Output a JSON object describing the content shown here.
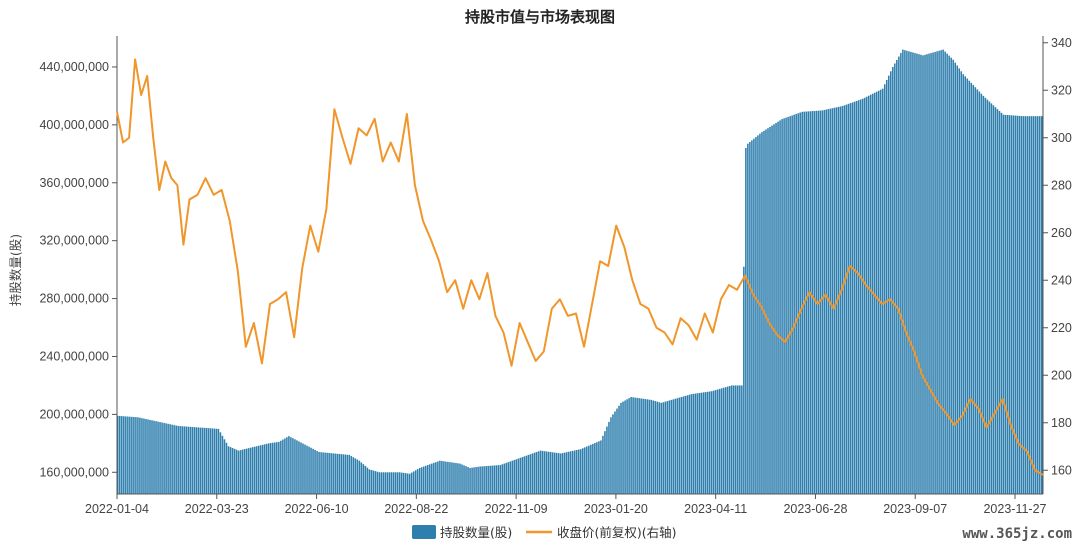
{
  "chart_data": {
    "type": "bar+line",
    "title": "持股市值与市场表现图",
    "ylabel_left": "持股数量(股)",
    "ylim_left": [
      145000000,
      460000000
    ],
    "ylim_right": [
      150,
      342
    ],
    "left_ticks": [
      "160,000,000",
      "200,000,000",
      "240,000,000",
      "280,000,000",
      "320,000,000",
      "360,000,000",
      "400,000,000",
      "440,000,000"
    ],
    "left_tick_values": [
      160000000,
      200000000,
      240000000,
      280000000,
      320000000,
      360000000,
      400000000,
      440000000
    ],
    "right_ticks": [
      "160",
      "180",
      "200",
      "220",
      "240",
      "260",
      "280",
      "300",
      "320",
      "340"
    ],
    "right_tick_values": [
      160,
      180,
      200,
      220,
      240,
      260,
      280,
      300,
      320,
      340
    ],
    "x_ticks": [
      "2022-01-04",
      "2022-03-23",
      "2022-06-10",
      "2022-08-22",
      "2022-11-09",
      "2023-01-20",
      "2023-04-11",
      "2023-06-28",
      "2023-09-07",
      "2023-11-27"
    ],
    "legend": [
      "持股数量(股)",
      "收盘价(前复权)(右轴)"
    ],
    "colors": {
      "bar": "#2f7fae",
      "line": "#f0962a"
    },
    "holdings_series": {
      "name": "持股数量(股)",
      "t": [
        0,
        10,
        20,
        30,
        40,
        50,
        55,
        60,
        75,
        80,
        85,
        100,
        115,
        120,
        125,
        130,
        140,
        145,
        150,
        160,
        170,
        175,
        180,
        190,
        200,
        210,
        220,
        230,
        240,
        245,
        250,
        255,
        260,
        265,
        270,
        275,
        280,
        285,
        290,
        295,
        300,
        305,
        310,
        312,
        313,
        320,
        330,
        340,
        350,
        360,
        370,
        380,
        385,
        390,
        395,
        400,
        405,
        410,
        415,
        420,
        430,
        440,
        450,
        460
      ],
      "values": [
        199000000,
        198000000,
        195000000,
        192000000,
        191000000,
        190000000,
        178000000,
        175000000,
        180000000,
        181000000,
        185000000,
        174000000,
        172000000,
        168000000,
        162000000,
        160000000,
        160000000,
        159000000,
        163000000,
        168000000,
        166000000,
        163000000,
        164000000,
        165000000,
        170000000,
        175000000,
        173000000,
        176000000,
        182000000,
        198000000,
        208000000,
        212000000,
        211000000,
        210000000,
        208000000,
        210000000,
        212000000,
        214000000,
        215000000,
        216000000,
        218000000,
        220000000,
        220000000,
        384000000,
        387000000,
        395000000,
        404000000,
        409000000,
        410000000,
        413000000,
        418000000,
        425000000,
        440000000,
        452000000,
        450000000,
        448000000,
        450000000,
        452000000,
        445000000,
        435000000,
        420000000,
        407000000,
        406000000,
        406000000
      ]
    },
    "price_series": {
      "name": "收盘价(前复权)(右轴)",
      "t": [
        0,
        3,
        6,
        9,
        12,
        15,
        18,
        21,
        24,
        27,
        30,
        33,
        36,
        40,
        44,
        48,
        52,
        56,
        60,
        64,
        68,
        72,
        76,
        80,
        84,
        88,
        92,
        96,
        100,
        104,
        108,
        112,
        116,
        120,
        124,
        128,
        132,
        136,
        140,
        144,
        148,
        152,
        156,
        160,
        164,
        168,
        172,
        176,
        180,
        184,
        188,
        192,
        196,
        200,
        204,
        208,
        212,
        216,
        220,
        224,
        228,
        232,
        236,
        240,
        244,
        248,
        252,
        256,
        260,
        264,
        268,
        272,
        276,
        280,
        284,
        288,
        292,
        296,
        300,
        304,
        308,
        312,
        316,
        320,
        324,
        328,
        332,
        336,
        340,
        344,
        348,
        352,
        356,
        360,
        364,
        368,
        372,
        376,
        380,
        384,
        388,
        392,
        396,
        400,
        404,
        408,
        412,
        416,
        420,
        424,
        428,
        432,
        436,
        440,
        444,
        448,
        452,
        456,
        460
      ],
      "values": [
        311,
        298,
        300,
        333,
        318,
        326,
        300,
        278,
        290,
        283,
        280,
        255,
        274,
        276,
        283,
        276,
        278,
        265,
        244,
        212,
        222,
        205,
        230,
        232,
        235,
        216,
        245,
        263,
        252,
        270,
        312,
        300,
        289,
        304,
        301,
        308,
        290,
        298,
        290,
        310,
        280,
        265,
        257,
        248,
        235,
        240,
        228,
        240,
        232,
        243,
        225,
        218,
        204,
        222,
        214,
        206,
        210,
        228,
        232,
        225,
        226,
        212,
        230,
        248,
        246,
        263,
        254,
        240,
        230,
        228,
        220,
        218,
        213,
        224,
        221,
        215,
        226,
        218,
        232,
        238,
        236,
        242,
        234,
        229,
        222,
        217,
        214,
        220,
        228,
        235,
        230,
        234,
        228,
        236,
        246,
        243,
        238,
        234,
        230,
        232,
        228,
        218,
        210,
        200,
        194,
        188,
        184,
        179,
        183,
        190,
        186,
        178,
        184,
        190,
        179,
        171,
        168,
        160,
        158
      ]
    }
  },
  "watermark": "www.365jz.com"
}
